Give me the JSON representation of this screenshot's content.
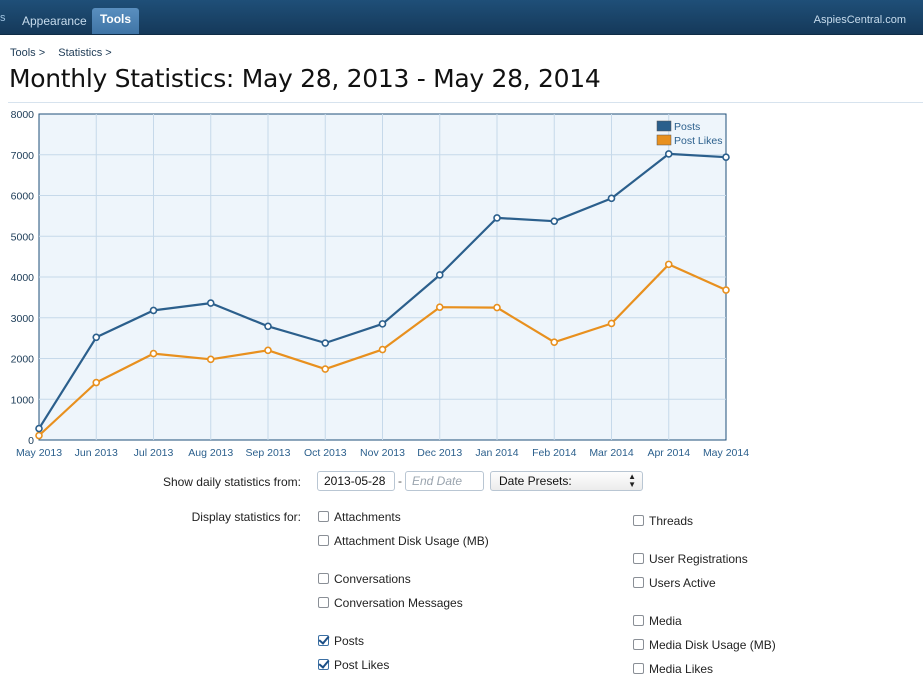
{
  "nav": {
    "edge_label": "s",
    "tabs": [
      {
        "label": "Appearance"
      },
      {
        "label": "Tools"
      }
    ],
    "site_name": "AspiesCentral.com"
  },
  "breadcrumb": [
    "Tools >",
    "Statistics >"
  ],
  "page_title": "Monthly Statistics: May 28, 2013 - May 28, 2014",
  "chart_data": {
    "type": "line",
    "categories": [
      "May 2013",
      "Jun 2013",
      "Jul 2013",
      "Aug 2013",
      "Sep 2013",
      "Oct 2013",
      "Nov 2013",
      "Dec 2013",
      "Jan 2014",
      "Feb 2014",
      "Mar 2014",
      "Apr 2014",
      "May 2014"
    ],
    "series": [
      {
        "name": "Posts",
        "color": "#2b5f8c",
        "values": [
          280,
          2520,
          3180,
          3360,
          2790,
          2380,
          2850,
          4050,
          5450,
          5370,
          5930,
          7020,
          6940
        ]
      },
      {
        "name": "Post Likes",
        "color": "#e8901e",
        "values": [
          110,
          1410,
          2120,
          1980,
          2200,
          1740,
          2220,
          3260,
          3250,
          2400,
          2860,
          4310,
          3680
        ]
      }
    ],
    "yticks": [
      "0",
      "1000",
      "2000",
      "3000",
      "4000",
      "5000",
      "6000",
      "7000",
      "8000"
    ],
    "ylim": [
      0,
      8000
    ],
    "grid": true,
    "legend_position": "top-right"
  },
  "controls": {
    "daily_label": "Show daily statistics from:",
    "start_date": "2013-05-28",
    "end_date_placeholder": "End Date",
    "separator": "-",
    "presets_label": "Date Presets:",
    "display_label": "Display statistics for:"
  },
  "checkboxes": {
    "col1": [
      {
        "label": "Attachments",
        "checked": false
      },
      {
        "label": "Attachment Disk Usage (MB)",
        "checked": false
      },
      {
        "label": "Conversations",
        "checked": false
      },
      {
        "label": "Conversation Messages",
        "checked": false
      },
      {
        "label": "Posts",
        "checked": true
      },
      {
        "label": "Post Likes",
        "checked": true
      }
    ],
    "col2": [
      {
        "label": "Threads",
        "checked": false
      },
      {
        "label": "User Registrations",
        "checked": false
      },
      {
        "label": "Users Active",
        "checked": false
      },
      {
        "label": "Media",
        "checked": false
      },
      {
        "label": "Media Disk Usage (MB)",
        "checked": false
      },
      {
        "label": "Media Likes",
        "checked": false
      }
    ]
  }
}
